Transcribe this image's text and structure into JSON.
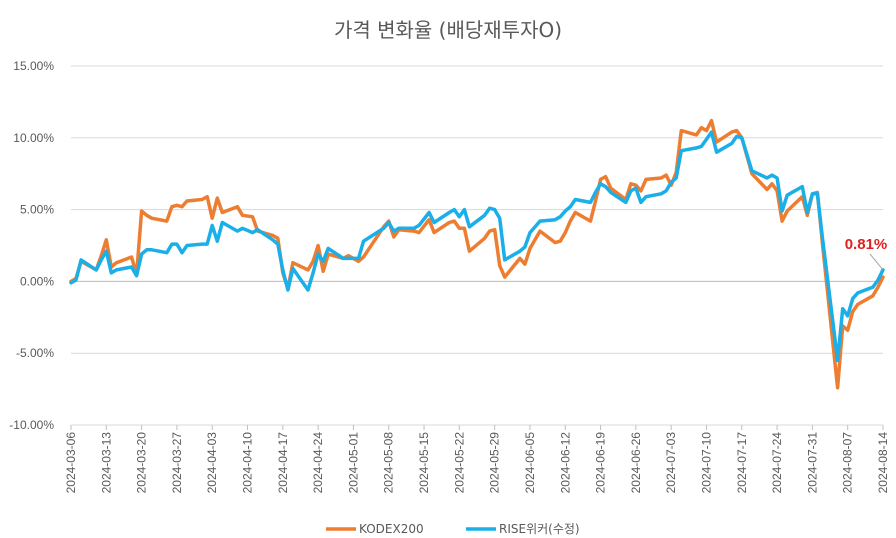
{
  "chart_data": {
    "type": "line",
    "title": "가격 변화율 (배당재투자O)",
    "y_ticks": [
      "15.00%",
      "10.00%",
      "5.00%",
      "0.00%",
      "-5.00%",
      "-10.00%"
    ],
    "y_tick_values": [
      15,
      10,
      5,
      0,
      -5,
      -10
    ],
    "ylim": [
      -10,
      15
    ],
    "grid": true,
    "legend_position": "bottom",
    "x_start": "2024-03-06",
    "x_end": "2024-08-14",
    "x_ticks": [
      "2024-03-06",
      "2024-03-13",
      "2024-03-20",
      "2024-03-27",
      "2024-04-03",
      "2024-04-10",
      "2024-04-17",
      "2024-04-24",
      "2024-05-01",
      "2024-05-08",
      "2024-05-15",
      "2024-05-22",
      "2024-05-29",
      "2024-06-05",
      "2024-06-12",
      "2024-06-19",
      "2024-06-26",
      "2024-07-03",
      "2024-07-10",
      "2024-07-17",
      "2024-07-24",
      "2024-07-31",
      "2024-08-07",
      "2024-08-14"
    ],
    "annotation": "0.81%",
    "series": [
      {
        "name": "KODEX200",
        "color": "#ED7D31",
        "points": [
          [
            "2024-03-06",
            0.0
          ],
          [
            "2024-03-07",
            0.2
          ],
          [
            "2024-03-08",
            1.4
          ],
          [
            "2024-03-11",
            0.8
          ],
          [
            "2024-03-12",
            1.8
          ],
          [
            "2024-03-13",
            2.9
          ],
          [
            "2024-03-14",
            1.0
          ],
          [
            "2024-03-15",
            1.3
          ],
          [
            "2024-03-18",
            1.7
          ],
          [
            "2024-03-19",
            0.5
          ],
          [
            "2024-03-20",
            4.9
          ],
          [
            "2024-03-21",
            4.6
          ],
          [
            "2024-03-22",
            4.4
          ],
          [
            "2024-03-25",
            4.2
          ],
          [
            "2024-03-26",
            5.2
          ],
          [
            "2024-03-27",
            5.3
          ],
          [
            "2024-03-28",
            5.2
          ],
          [
            "2024-03-29",
            5.6
          ],
          [
            "2024-04-01",
            5.7
          ],
          [
            "2024-04-02",
            5.9
          ],
          [
            "2024-04-03",
            4.4
          ],
          [
            "2024-04-04",
            5.8
          ],
          [
            "2024-04-05",
            4.8
          ],
          [
            "2024-04-08",
            5.2
          ],
          [
            "2024-04-09",
            4.6
          ],
          [
            "2024-04-11",
            4.5
          ],
          [
            "2024-04-12",
            3.5
          ],
          [
            "2024-04-15",
            3.2
          ],
          [
            "2024-04-16",
            3.0
          ],
          [
            "2024-04-17",
            0.6
          ],
          [
            "2024-04-18",
            -0.5
          ],
          [
            "2024-04-19",
            1.3
          ],
          [
            "2024-04-22",
            0.8
          ],
          [
            "2024-04-23",
            1.4
          ],
          [
            "2024-04-24",
            2.5
          ],
          [
            "2024-04-25",
            0.7
          ],
          [
            "2024-04-26",
            1.9
          ],
          [
            "2024-04-29",
            1.6
          ],
          [
            "2024-04-30",
            1.8
          ],
          [
            "2024-05-02",
            1.4
          ],
          [
            "2024-05-03",
            1.7
          ],
          [
            "2024-05-07",
            3.8
          ],
          [
            "2024-05-08",
            4.2
          ],
          [
            "2024-05-09",
            3.1
          ],
          [
            "2024-05-10",
            3.6
          ],
          [
            "2024-05-13",
            3.5
          ],
          [
            "2024-05-14",
            3.4
          ],
          [
            "2024-05-16",
            4.3
          ],
          [
            "2024-05-17",
            3.4
          ],
          [
            "2024-05-20",
            4.1
          ],
          [
            "2024-05-21",
            4.2
          ],
          [
            "2024-05-22",
            3.7
          ],
          [
            "2024-05-23",
            3.7
          ],
          [
            "2024-05-24",
            2.1
          ],
          [
            "2024-05-27",
            3.0
          ],
          [
            "2024-05-28",
            3.5
          ],
          [
            "2024-05-29",
            3.6
          ],
          [
            "2024-05-30",
            1.1
          ],
          [
            "2024-05-31",
            0.3
          ],
          [
            "2024-06-03",
            1.6
          ],
          [
            "2024-06-04",
            1.2
          ],
          [
            "2024-06-05",
            2.3
          ],
          [
            "2024-06-07",
            3.5
          ],
          [
            "2024-06-10",
            2.7
          ],
          [
            "2024-06-11",
            2.8
          ],
          [
            "2024-06-12",
            3.4
          ],
          [
            "2024-06-13",
            4.2
          ],
          [
            "2024-06-14",
            4.8
          ],
          [
            "2024-06-17",
            4.2
          ],
          [
            "2024-06-18",
            5.6
          ],
          [
            "2024-06-19",
            7.1
          ],
          [
            "2024-06-20",
            7.3
          ],
          [
            "2024-06-21",
            6.5
          ],
          [
            "2024-06-24",
            5.7
          ],
          [
            "2024-06-25",
            6.8
          ],
          [
            "2024-06-26",
            6.7
          ],
          [
            "2024-06-27",
            6.3
          ],
          [
            "2024-06-28",
            7.1
          ],
          [
            "2024-07-01",
            7.2
          ],
          [
            "2024-07-02",
            7.4
          ],
          [
            "2024-07-03",
            6.7
          ],
          [
            "2024-07-04",
            7.6
          ],
          [
            "2024-07-05",
            10.5
          ],
          [
            "2024-07-08",
            10.2
          ],
          [
            "2024-07-09",
            10.7
          ],
          [
            "2024-07-10",
            10.5
          ],
          [
            "2024-07-11",
            11.2
          ],
          [
            "2024-07-12",
            9.7
          ],
          [
            "2024-07-15",
            10.4
          ],
          [
            "2024-07-16",
            10.5
          ],
          [
            "2024-07-17",
            10.0
          ],
          [
            "2024-07-19",
            7.5
          ],
          [
            "2024-07-22",
            6.4
          ],
          [
            "2024-07-23",
            6.8
          ],
          [
            "2024-07-24",
            6.3
          ],
          [
            "2024-07-25",
            4.2
          ],
          [
            "2024-07-26",
            4.9
          ],
          [
            "2024-07-29",
            5.9
          ],
          [
            "2024-07-30",
            4.6
          ],
          [
            "2024-07-31",
            6.1
          ],
          [
            "2024-08-01",
            6.2
          ],
          [
            "2024-08-02",
            2.6
          ],
          [
            "2024-08-05",
            -7.4
          ],
          [
            "2024-08-06",
            -3.1
          ],
          [
            "2024-08-07",
            -3.4
          ],
          [
            "2024-08-08",
            -2.1
          ],
          [
            "2024-08-09",
            -1.6
          ],
          [
            "2024-08-12",
            -1.0
          ],
          [
            "2024-08-13",
            -0.4
          ],
          [
            "2024-08-14",
            0.3
          ]
        ]
      },
      {
        "name": "RISE위커(수정)",
        "color": "#1AAFE8",
        "points": [
          [
            "2024-03-06",
            -0.1
          ],
          [
            "2024-03-07",
            0.1
          ],
          [
            "2024-03-08",
            1.5
          ],
          [
            "2024-03-11",
            0.8
          ],
          [
            "2024-03-12",
            1.5
          ],
          [
            "2024-03-13",
            2.1
          ],
          [
            "2024-03-14",
            0.6
          ],
          [
            "2024-03-15",
            0.8
          ],
          [
            "2024-03-18",
            1.0
          ],
          [
            "2024-03-19",
            0.4
          ],
          [
            "2024-03-20",
            1.9
          ],
          [
            "2024-03-21",
            2.2
          ],
          [
            "2024-03-22",
            2.2
          ],
          [
            "2024-03-25",
            2.0
          ],
          [
            "2024-03-26",
            2.6
          ],
          [
            "2024-03-27",
            2.6
          ],
          [
            "2024-03-28",
            2.0
          ],
          [
            "2024-03-29",
            2.5
          ],
          [
            "2024-04-01",
            2.6
          ],
          [
            "2024-04-02",
            2.6
          ],
          [
            "2024-04-03",
            3.9
          ],
          [
            "2024-04-04",
            2.8
          ],
          [
            "2024-04-05",
            4.1
          ],
          [
            "2024-04-08",
            3.5
          ],
          [
            "2024-04-09",
            3.7
          ],
          [
            "2024-04-11",
            3.4
          ],
          [
            "2024-04-12",
            3.6
          ],
          [
            "2024-04-15",
            2.9
          ],
          [
            "2024-04-16",
            2.6
          ],
          [
            "2024-04-17",
            0.8
          ],
          [
            "2024-04-18",
            -0.6
          ],
          [
            "2024-04-19",
            0.9
          ],
          [
            "2024-04-22",
            -0.6
          ],
          [
            "2024-04-23",
            0.6
          ],
          [
            "2024-04-24",
            1.9
          ],
          [
            "2024-04-25",
            1.4
          ],
          [
            "2024-04-26",
            2.3
          ],
          [
            "2024-04-29",
            1.6
          ],
          [
            "2024-04-30",
            1.6
          ],
          [
            "2024-05-02",
            1.6
          ],
          [
            "2024-05-03",
            2.8
          ],
          [
            "2024-05-07",
            3.7
          ],
          [
            "2024-05-08",
            4.1
          ],
          [
            "2024-05-09",
            3.5
          ],
          [
            "2024-05-10",
            3.7
          ],
          [
            "2024-05-13",
            3.7
          ],
          [
            "2024-05-14",
            3.9
          ],
          [
            "2024-05-16",
            4.8
          ],
          [
            "2024-05-17",
            4.1
          ],
          [
            "2024-05-20",
            4.8
          ],
          [
            "2024-05-21",
            5.0
          ],
          [
            "2024-05-22",
            4.5
          ],
          [
            "2024-05-23",
            5.0
          ],
          [
            "2024-05-24",
            3.8
          ],
          [
            "2024-05-27",
            4.6
          ],
          [
            "2024-05-28",
            5.1
          ],
          [
            "2024-05-29",
            5.0
          ],
          [
            "2024-05-30",
            4.4
          ],
          [
            "2024-05-31",
            1.5
          ],
          [
            "2024-06-03",
            2.1
          ],
          [
            "2024-06-04",
            2.4
          ],
          [
            "2024-06-05",
            3.4
          ],
          [
            "2024-06-07",
            4.2
          ],
          [
            "2024-06-10",
            4.3
          ],
          [
            "2024-06-11",
            4.5
          ],
          [
            "2024-06-12",
            4.9
          ],
          [
            "2024-06-13",
            5.2
          ],
          [
            "2024-06-14",
            5.7
          ],
          [
            "2024-06-17",
            5.5
          ],
          [
            "2024-06-18",
            6.2
          ],
          [
            "2024-06-19",
            6.8
          ],
          [
            "2024-06-20",
            6.6
          ],
          [
            "2024-06-21",
            6.2
          ],
          [
            "2024-06-24",
            5.5
          ],
          [
            "2024-06-25",
            6.3
          ],
          [
            "2024-06-26",
            6.5
          ],
          [
            "2024-06-27",
            5.5
          ],
          [
            "2024-06-28",
            5.9
          ],
          [
            "2024-07-01",
            6.1
          ],
          [
            "2024-07-02",
            6.3
          ],
          [
            "2024-07-03",
            6.9
          ],
          [
            "2024-07-04",
            7.2
          ],
          [
            "2024-07-05",
            9.1
          ],
          [
            "2024-07-08",
            9.3
          ],
          [
            "2024-07-09",
            9.4
          ],
          [
            "2024-07-10",
            9.9
          ],
          [
            "2024-07-11",
            10.4
          ],
          [
            "2024-07-12",
            9.0
          ],
          [
            "2024-07-15",
            9.6
          ],
          [
            "2024-07-16",
            10.1
          ],
          [
            "2024-07-17",
            10.0
          ],
          [
            "2024-07-19",
            7.7
          ],
          [
            "2024-07-22",
            7.2
          ],
          [
            "2024-07-23",
            7.4
          ],
          [
            "2024-07-24",
            7.2
          ],
          [
            "2024-07-25",
            4.9
          ],
          [
            "2024-07-26",
            6.0
          ],
          [
            "2024-07-29",
            6.6
          ],
          [
            "2024-07-30",
            4.8
          ],
          [
            "2024-07-31",
            6.1
          ],
          [
            "2024-08-01",
            6.1
          ],
          [
            "2024-08-02",
            3.0
          ],
          [
            "2024-08-05",
            -5.5
          ],
          [
            "2024-08-06",
            -1.9
          ],
          [
            "2024-08-07",
            -2.4
          ],
          [
            "2024-08-08",
            -1.2
          ],
          [
            "2024-08-09",
            -0.8
          ],
          [
            "2024-08-12",
            -0.4
          ],
          [
            "2024-08-13",
            0.1
          ],
          [
            "2024-08-14",
            0.81
          ]
        ]
      }
    ]
  }
}
